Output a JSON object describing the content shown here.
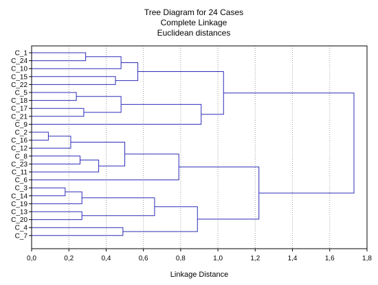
{
  "chart_data": {
    "type": "dendrogram",
    "title": [
      "Tree Diagram for 24 Cases",
      "Complete Linkage",
      "Euclidean distances"
    ],
    "xlabel": "Linkage Distance",
    "xlim": [
      0.0,
      1.8
    ],
    "xticks": [
      0.0,
      0.2,
      0.4,
      0.6,
      0.8,
      1.0,
      1.2,
      1.4,
      1.6,
      1.8
    ],
    "xtick_labels": [
      "0,0",
      "0,2",
      "0,4",
      "0,6",
      "0,8",
      "1,0",
      "1,2",
      "1,4",
      "1,6",
      "1,8"
    ],
    "grid": "vertical dotted",
    "line_color": "#2b2bb8",
    "leaves": [
      "C_1",
      "C_24",
      "C_10",
      "C_15",
      "C_22",
      "C_5",
      "C_18",
      "C_17",
      "C_21",
      "C_9",
      "C_2",
      "C_16",
      "C_12",
      "C_8",
      "C_23",
      "C_11",
      "C_6",
      "C_3",
      "C_14",
      "C_19",
      "C_13",
      "C_20",
      "C_4",
      "C_7"
    ],
    "merges": [
      {
        "id": "m1",
        "a": "C_1",
        "b": "C_24",
        "height": 0.29
      },
      {
        "id": "m2",
        "a": "m1",
        "b": "C_10",
        "height": 0.48
      },
      {
        "id": "m3",
        "a": "C_15",
        "b": "C_22",
        "height": 0.45
      },
      {
        "id": "m4",
        "a": "m2",
        "b": "m3",
        "height": 0.57
      },
      {
        "id": "m5",
        "a": "C_5",
        "b": "C_18",
        "height": 0.24
      },
      {
        "id": "m6",
        "a": "C_17",
        "b": "C_21",
        "height": 0.28
      },
      {
        "id": "m7",
        "a": "m5",
        "b": "m6",
        "height": 0.48
      },
      {
        "id": "m8",
        "a": "m7",
        "b": "C_9",
        "height": 0.91
      },
      {
        "id": "m9",
        "a": "m4",
        "b": "m8",
        "height": 1.03
      },
      {
        "id": "m10",
        "a": "C_2",
        "b": "C_16",
        "height": 0.09
      },
      {
        "id": "m11",
        "a": "m10",
        "b": "C_12",
        "height": 0.21
      },
      {
        "id": "m12",
        "a": "C_8",
        "b": "C_23",
        "height": 0.26
      },
      {
        "id": "m13",
        "a": "m12",
        "b": "C_11",
        "height": 0.36
      },
      {
        "id": "m14",
        "a": "m11",
        "b": "m13",
        "height": 0.5
      },
      {
        "id": "m15",
        "a": "m14",
        "b": "C_6",
        "height": 0.79
      },
      {
        "id": "m16",
        "a": "C_3",
        "b": "C_14",
        "height": 0.18
      },
      {
        "id": "m17",
        "a": "m16",
        "b": "C_19",
        "height": 0.27
      },
      {
        "id": "m18",
        "a": "C_13",
        "b": "C_20",
        "height": 0.27
      },
      {
        "id": "m19",
        "a": "m17",
        "b": "m18",
        "height": 0.66
      },
      {
        "id": "m20",
        "a": "C_4",
        "b": "C_7",
        "height": 0.49
      },
      {
        "id": "m21",
        "a": "m19",
        "b": "m20",
        "height": 0.89
      },
      {
        "id": "m22",
        "a": "m15",
        "b": "m21",
        "height": 1.22
      },
      {
        "id": "m23",
        "a": "m9",
        "b": "m22",
        "height": 1.73
      }
    ]
  }
}
